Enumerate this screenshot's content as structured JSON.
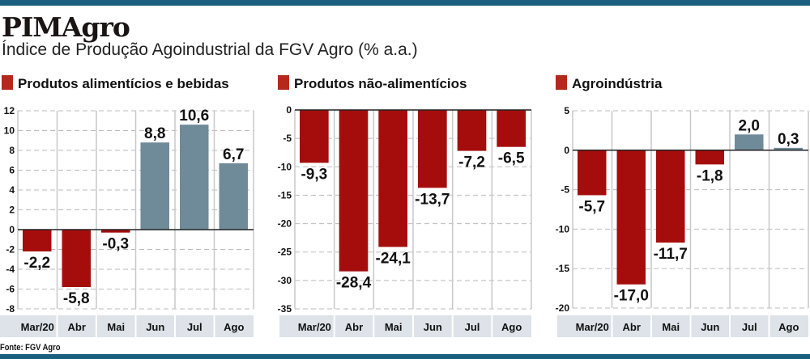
{
  "header": {
    "title": "PIMAgro",
    "subtitle": "Índice de Produção Agoindustrial da FGV Agro (% a.a.)"
  },
  "source": "Fonte: FGV Agro",
  "colors": {
    "negative": "#a50d0d",
    "positive": "#6f8b99",
    "top_bar": "#1a5e80",
    "category_strip": "#dde3e8",
    "legend_square": "#b5281b"
  },
  "chart_data": [
    {
      "type": "bar",
      "title": "Produtos alimentícios e bebidas",
      "categories": [
        "Mar/20",
        "Abr",
        "Mai",
        "Jun",
        "Jul",
        "Ago"
      ],
      "values": [
        -2.2,
        -5.8,
        -0.3,
        8.8,
        10.6,
        6.7
      ],
      "labels": [
        "-2,2",
        "-5,8",
        "-0,3",
        "8,8",
        "10,6",
        "6,7"
      ],
      "ylim": [
        -8,
        12
      ],
      "yticks": [
        12,
        10,
        8,
        6,
        4,
        2,
        0,
        -2,
        -4,
        -6,
        -8
      ],
      "grid": true
    },
    {
      "type": "bar",
      "title": "Produtos não-alimentícios",
      "categories": [
        "Mar/20",
        "Abr",
        "Mai",
        "Jun",
        "Jul",
        "Ago"
      ],
      "values": [
        -9.3,
        -28.4,
        -24.1,
        -13.7,
        -7.2,
        -6.5
      ],
      "labels": [
        "-9,3",
        "-28,4",
        "-24,1",
        "-13,7",
        "-7,2",
        "-6,5"
      ],
      "ylim": [
        -35,
        0
      ],
      "yticks": [
        0,
        -5,
        -10,
        -15,
        -20,
        -25,
        -30,
        -35
      ],
      "grid": true
    },
    {
      "type": "bar",
      "title": "Agroindústria",
      "categories": [
        "Mar/20",
        "Abr",
        "Mai",
        "Jun",
        "Jul",
        "Ago"
      ],
      "values": [
        -5.7,
        -17.0,
        -11.7,
        -1.8,
        2.0,
        0.3
      ],
      "labels": [
        "-5,7",
        "-17,0",
        "-11,7",
        "-1,8",
        "2,0",
        "0,3"
      ],
      "ylim": [
        -20,
        5
      ],
      "yticks": [
        5,
        0,
        -5,
        -10,
        -15,
        -20
      ],
      "grid": true
    }
  ]
}
